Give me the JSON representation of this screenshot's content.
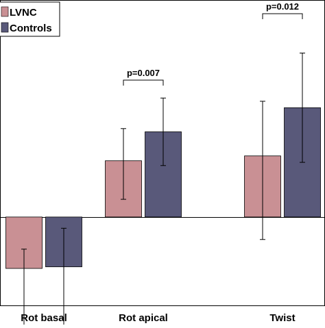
{
  "chart_data": {
    "type": "bar",
    "categories": [
      "Rot basal",
      "Rot apical",
      "Twist"
    ],
    "series": [
      {
        "name": "LVNC",
        "color": "#c99094",
        "values": [
          -3.2,
          3.5,
          3.8
        ],
        "err_low": [
          3.9,
          2.4,
          5.2
        ],
        "err_high": [
          1.2,
          2.0,
          3.4
        ]
      },
      {
        "name": "Controls",
        "color": "#59597a",
        "values": [
          -3.1,
          5.3,
          6.8
        ],
        "err_low": [
          3.9,
          2.1,
          3.4
        ],
        "err_high": [
          2.4,
          2.1,
          3.4
        ]
      }
    ],
    "annotations": [
      {
        "text": "p=0.007",
        "category": "Rot apical"
      },
      {
        "text": "p=0.012",
        "category": "Twist"
      }
    ],
    "ylim": [
      -5.5,
      13.5
    ],
    "legend": {
      "placement": "top-left",
      "entries": [
        "LVNC",
        "Controls"
      ]
    },
    "grid": false
  }
}
